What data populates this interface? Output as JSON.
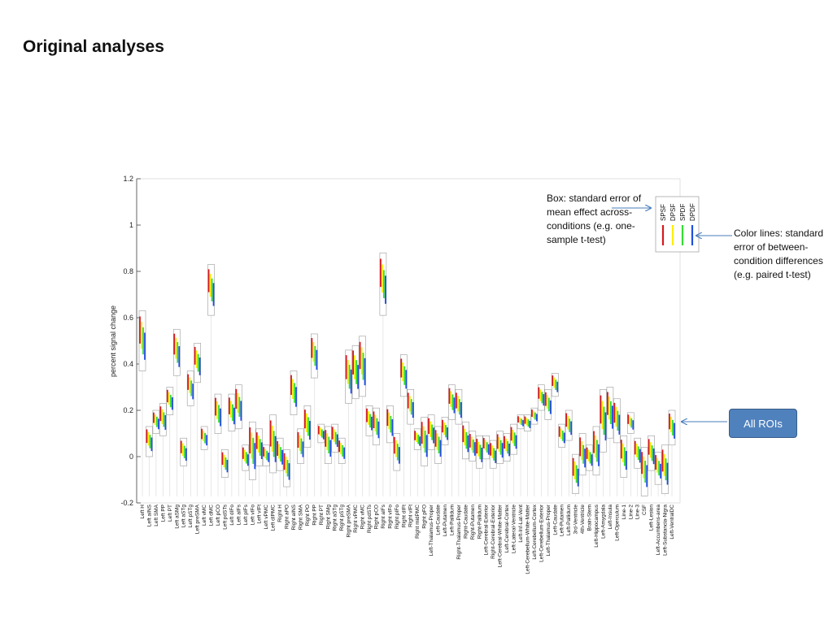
{
  "slide": {
    "title": "Original analyses",
    "box_note": "Box: standard error of mean effect across-conditions (e.g. one-sample t-test)",
    "color_note": "Color lines: standard error of between-condition differences (e.g. paired t-test)",
    "all_rois_label": "All ROIs"
  },
  "chart_data": {
    "type": "box",
    "ylabel": "percent signal change",
    "ylim": [
      -0.2,
      1.2
    ],
    "yticks": [
      -0.2,
      0,
      0.2,
      0.4,
      0.6,
      0.8,
      1,
      1.2
    ],
    "grid": false,
    "legend": {
      "position": "top-right",
      "entries": [
        "SPSF",
        "DPSF",
        "SPDF",
        "DPDF"
      ],
      "colors": [
        "#d7191c",
        "#ffee00",
        "#33dd33",
        "#1f4fe0"
      ]
    },
    "categories": [
      "Left H",
      "Left aINS",
      "Left SMA",
      "Left PP",
      "Left PT",
      "Left aSMg",
      "Left aSTg",
      "Left pSTg",
      "Left preSMA",
      "Left vMC",
      "Left dMC",
      "Left pCO",
      "Left pdSTs",
      "Left dIFo",
      "Left aIFs",
      "Left pIFs",
      "Left vIFo",
      "Left vIFt",
      "Left vPMC",
      "Left dIPMC",
      "Right H",
      "Right aPO",
      "Right aINS",
      "Right SMA",
      "Right PO",
      "Right PP",
      "Right PT",
      "Right SMg",
      "Right aSTg",
      "Right pSTg",
      "Right preSMA",
      "Right vPMC",
      "Right vMC",
      "Right pdSTs",
      "Right pCO",
      "Right aIFs",
      "Right vIFo",
      "Right pIFo",
      "Right dIFt",
      "Right vIFt",
      "Right midPMC",
      "Right pFO",
      "Left-Thalamus-Proper",
      "Left-Caudate",
      "Left-Putamen",
      "Left-Pallidum",
      "Right-Thalamus-Proper",
      "Right-Caudate",
      "Right-Putamen",
      "Right-Pallidum",
      "Left-Cerebral-Exterior",
      "Right-Cerebral-Exterior",
      "Left-Cerebral-White-Matter",
      "Left-Cerebral-Cortex",
      "Left-Lateral-Ventricle",
      "Left-Inf-Lat-Vent",
      "Left-Cerebellum-White-Matter",
      "Left-Cerebellum-Cortex",
      "Left-Cerebellum-Exterior",
      "Left-Thalamus-Proper",
      "Left-Caudate",
      "Left-Putamen",
      "Left-Pallidum",
      "3rd-Ventricle",
      "4th-Ventricle",
      "Brain-Stem",
      "Left-Hippocampus",
      "Left-Amygdala",
      "Left-Insula",
      "Left-Operculum",
      "Line-1",
      "Line-2",
      "Line-3",
      "CSF",
      "Left-Lesion",
      "Left-Accumbens-area",
      "Left-Substancia-Nigra",
      "Left-VentralDC"
    ],
    "boxes": [
      [
        0.37,
        0.63
      ],
      [
        0.0,
        0.13
      ],
      [
        0.1,
        0.2
      ],
      [
        0.09,
        0.23
      ],
      [
        0.18,
        0.3
      ],
      [
        0.35,
        0.55
      ],
      [
        -0.04,
        0.08
      ],
      [
        0.22,
        0.37
      ],
      [
        0.32,
        0.49
      ],
      [
        0.03,
        0.13
      ],
      [
        0.61,
        0.83
      ],
      [
        0.1,
        0.27
      ],
      [
        -0.09,
        0.03
      ],
      [
        0.11,
        0.27
      ],
      [
        0.12,
        0.31
      ],
      [
        -0.06,
        0.05
      ],
      [
        -0.1,
        0.15
      ],
      [
        -0.04,
        0.12
      ],
      [
        -0.04,
        0.05
      ],
      [
        -0.07,
        0.18
      ],
      [
        -0.06,
        0.08
      ],
      [
        -0.13,
        0.03
      ],
      [
        0.18,
        0.37
      ],
      [
        -0.03,
        0.12
      ],
      [
        0.04,
        0.22
      ],
      [
        0.34,
        0.53
      ],
      [
        0.06,
        0.14
      ],
      [
        -0.03,
        0.13
      ],
      [
        0.02,
        0.14
      ],
      [
        -0.03,
        0.08
      ],
      [
        0.23,
        0.46
      ],
      [
        0.25,
        0.48
      ],
      [
        0.26,
        0.52
      ],
      [
        0.09,
        0.22
      ],
      [
        0.05,
        0.21
      ],
      [
        0.61,
        0.88
      ],
      [
        0.06,
        0.22
      ],
      [
        -0.06,
        0.1
      ],
      [
        0.26,
        0.44
      ],
      [
        0.14,
        0.29
      ],
      [
        0.03,
        0.12
      ],
      [
        -0.04,
        0.17
      ],
      [
        0.03,
        0.18
      ],
      [
        -0.03,
        0.13
      ],
      [
        0.05,
        0.17
      ],
      [
        0.16,
        0.31
      ],
      [
        0.14,
        0.29
      ],
      [
        -0.01,
        0.15
      ],
      [
        -0.02,
        0.11
      ],
      [
        -0.05,
        0.09
      ],
      [
        -0.01,
        0.09
      ],
      [
        -0.05,
        0.07
      ],
      [
        -0.03,
        0.11
      ],
      [
        -0.02,
        0.1
      ],
      [
        0.01,
        0.14
      ],
      [
        0.12,
        0.18
      ],
      [
        0.11,
        0.18
      ],
      [
        0.14,
        0.21
      ],
      [
        0.2,
        0.31
      ],
      [
        0.16,
        0.29
      ],
      [
        0.26,
        0.36
      ],
      [
        0.04,
        0.14
      ],
      [
        0.07,
        0.2
      ],
      [
        -0.16,
        0.01
      ],
      [
        -0.08,
        0.1
      ],
      [
        -0.06,
        0.05
      ],
      [
        -0.08,
        0.13
      ],
      [
        0.02,
        0.29
      ],
      [
        0.08,
        0.3
      ],
      [
        0.06,
        0.25
      ],
      [
        -0.09,
        0.09
      ],
      [
        0.1,
        0.19
      ],
      [
        -0.05,
        0.08
      ],
      [
        -0.17,
        0.04
      ],
      [
        -0.06,
        0.09
      ],
      [
        -0.12,
        0.02
      ],
      [
        -0.16,
        0.05
      ],
      [
        0.05,
        0.2
      ]
    ]
  }
}
